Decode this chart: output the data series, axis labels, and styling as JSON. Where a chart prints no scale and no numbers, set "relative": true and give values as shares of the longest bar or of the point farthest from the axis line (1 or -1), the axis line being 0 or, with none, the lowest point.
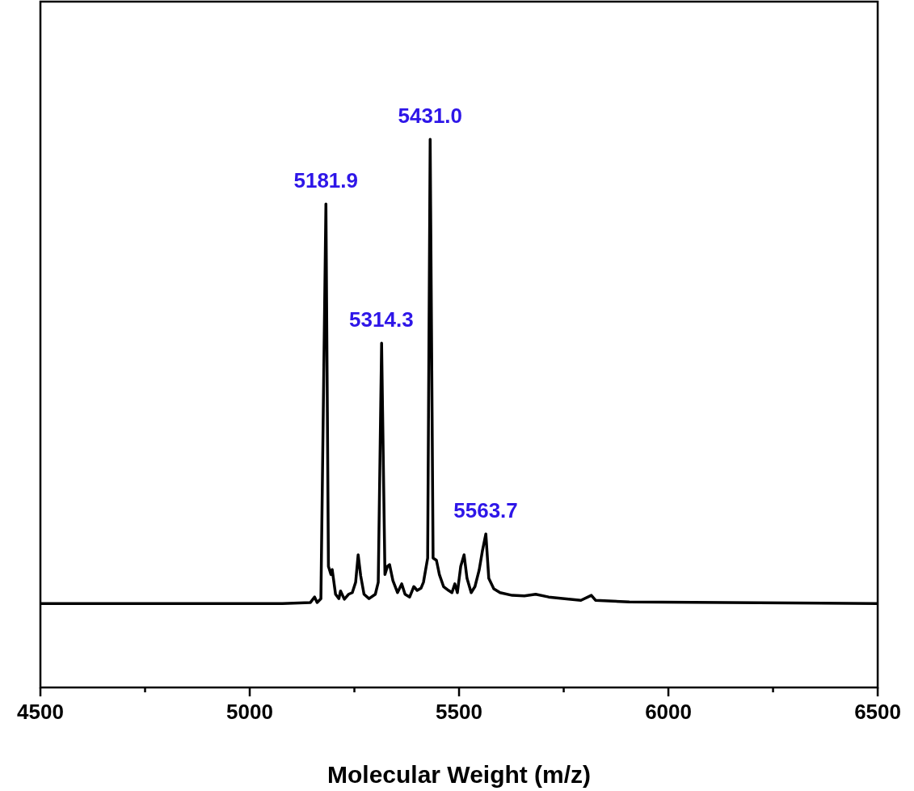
{
  "chart_data": {
    "type": "line",
    "xlabel": "Molecular Weight (m/z)",
    "relative": true,
    "color": "#000000",
    "marker": "none",
    "line_style": "solid",
    "grid": false,
    "legend": false,
    "tick_labels": "x",
    "xlim": [
      4500,
      6500
    ],
    "xticks": [
      4500,
      {
        "value": 4750,
        "label": null
      },
      5000,
      {
        "value": 5250,
        "label": null
      },
      5500,
      {
        "value": 5750,
        "label": null
      },
      6000,
      {
        "value": 6250,
        "label": null
      },
      6500
    ],
    "x": [
      4500,
      5078,
      5145,
      5155,
      5161,
      5170,
      5182,
      5188,
      5194,
      5197,
      5205,
      5213,
      5217,
      5226,
      5236,
      5245,
      5253,
      5259,
      5265,
      5273,
      5285,
      5300,
      5307,
      5315,
      5323,
      5329,
      5334,
      5342,
      5353,
      5363,
      5371,
      5382,
      5392,
      5400,
      5409,
      5415,
      5425,
      5431,
      5438,
      5446,
      5453,
      5463,
      5475,
      5483,
      5490,
      5496,
      5504,
      5512,
      5519,
      5529,
      5538,
      5548,
      5556,
      5564,
      5571,
      5583,
      5598,
      5627,
      5656,
      5683,
      5714,
      5752,
      5791,
      5816,
      5826,
      5907,
      6138,
      6500
    ],
    "values": [
      0.153,
      0.153,
      0.155,
      0.165,
      0.155,
      0.162,
      0.882,
      0.221,
      0.206,
      0.215,
      0.17,
      0.162,
      0.176,
      0.161,
      0.17,
      0.173,
      0.192,
      0.242,
      0.204,
      0.17,
      0.162,
      0.17,
      0.192,
      0.628,
      0.206,
      0.221,
      0.224,
      0.195,
      0.173,
      0.189,
      0.17,
      0.165,
      0.184,
      0.177,
      0.181,
      0.192,
      0.236,
      1.0,
      0.236,
      0.232,
      0.206,
      0.184,
      0.177,
      0.173,
      0.189,
      0.173,
      0.221,
      0.242,
      0.199,
      0.173,
      0.184,
      0.214,
      0.25,
      0.28,
      0.199,
      0.18,
      0.173,
      0.168,
      0.167,
      0.17,
      0.165,
      0.162,
      0.159,
      0.168,
      0.159,
      0.156,
      0.155,
      0.153
    ],
    "annotations": [
      {
        "text": "5181.9",
        "x": 5181.9,
        "y": 0.882
      },
      {
        "text": "5314.3",
        "x": 5314.3,
        "y": 0.628
      },
      {
        "text": "5431.0",
        "x": 5431.0,
        "y": 1.0
      },
      {
        "text": "5563.7",
        "x": 5563.7,
        "y": 0.28
      }
    ]
  }
}
